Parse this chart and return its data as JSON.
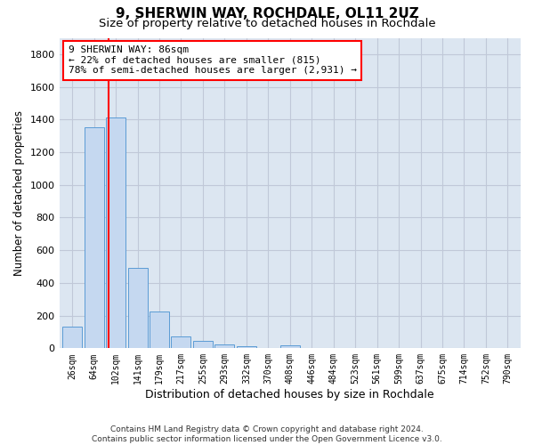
{
  "title1": "9, SHERWIN WAY, ROCHDALE, OL11 2UZ",
  "title2": "Size of property relative to detached houses in Rochdale",
  "xlabel": "Distribution of detached houses by size in Rochdale",
  "ylabel": "Number of detached properties",
  "bar_labels": [
    "26sqm",
    "64sqm",
    "102sqm",
    "141sqm",
    "179sqm",
    "217sqm",
    "255sqm",
    "293sqm",
    "332sqm",
    "370sqm",
    "408sqm",
    "446sqm",
    "484sqm",
    "523sqm",
    "561sqm",
    "599sqm",
    "637sqm",
    "675sqm",
    "714sqm",
    "752sqm",
    "790sqm"
  ],
  "bar_values": [
    135,
    1355,
    1410,
    490,
    225,
    75,
    43,
    25,
    15,
    0,
    20,
    0,
    0,
    0,
    0,
    0,
    0,
    0,
    0,
    0,
    0
  ],
  "bar_color": "#c5d8f0",
  "bar_edge_color": "#5b9bd5",
  "grid_color": "#c0c8d8",
  "background_color": "#dce6f1",
  "annotation_box_text": "9 SHERWIN WAY: 86sqm\n← 22% of detached houses are smaller (815)\n78% of semi-detached houses are larger (2,931) →",
  "vline_x": 1.65,
  "ylim": [
    0,
    1900
  ],
  "yticks": [
    0,
    200,
    400,
    600,
    800,
    1000,
    1200,
    1400,
    1600,
    1800
  ],
  "footer": "Contains HM Land Registry data © Crown copyright and database right 2024.\nContains public sector information licensed under the Open Government Licence v3.0.",
  "title_fontsize": 11,
  "subtitle_fontsize": 9.5
}
